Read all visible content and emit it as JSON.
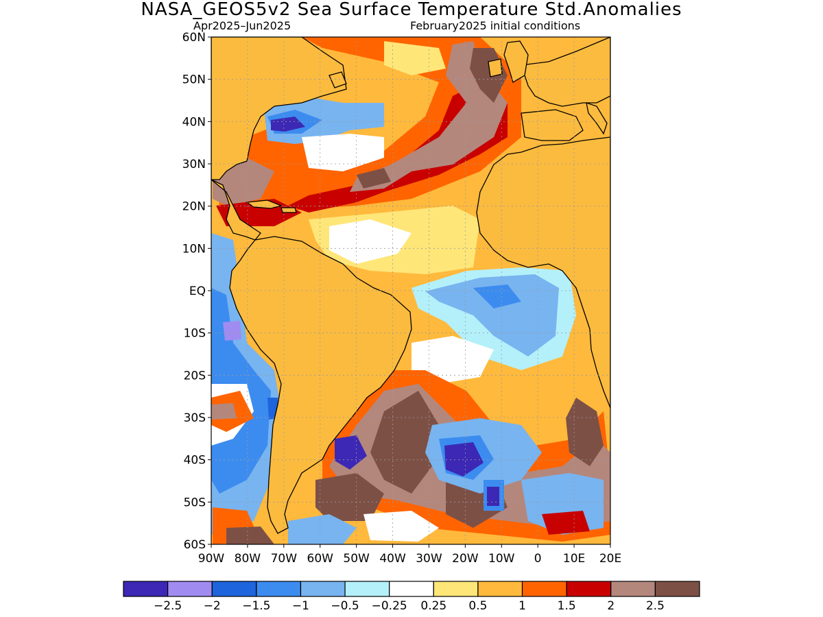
{
  "title": "NASA_GEOS5v2 Sea Surface Temperature Std.Anomalies",
  "subtitle_left": "Apr2025–Jun2025",
  "subtitle_right": "February2025 initial conditions",
  "lat_labels": [
    "60N",
    "50N",
    "40N",
    "30N",
    "20N",
    "10N",
    "EQ",
    "10S",
    "20S",
    "30S",
    "40S",
    "50S",
    "60S"
  ],
  "lon_labels": [
    "90W",
    "80W",
    "70W",
    "60W",
    "50W",
    "40W",
    "30W",
    "20W",
    "10W",
    "0",
    "10E",
    "20E"
  ],
  "colorbar": {
    "colors": [
      "#3c28b4",
      "#a08cf0",
      "#1e64dc",
      "#3c8cf0",
      "#78b4f0",
      "#b4f0fa",
      "#ffffff",
      "#ffe678",
      "#ffb93c",
      "#ff6400",
      "#c80000",
      "#b4877d",
      "#7d5046"
    ],
    "labels": [
      "−2.5",
      "−2",
      "−1.5",
      "−1",
      "−0.5",
      "−0.25",
      "0.25",
      "0.5",
      "1",
      "1.5",
      "2",
      "2.5"
    ]
  },
  "land_color": "#fbbb3f"
}
